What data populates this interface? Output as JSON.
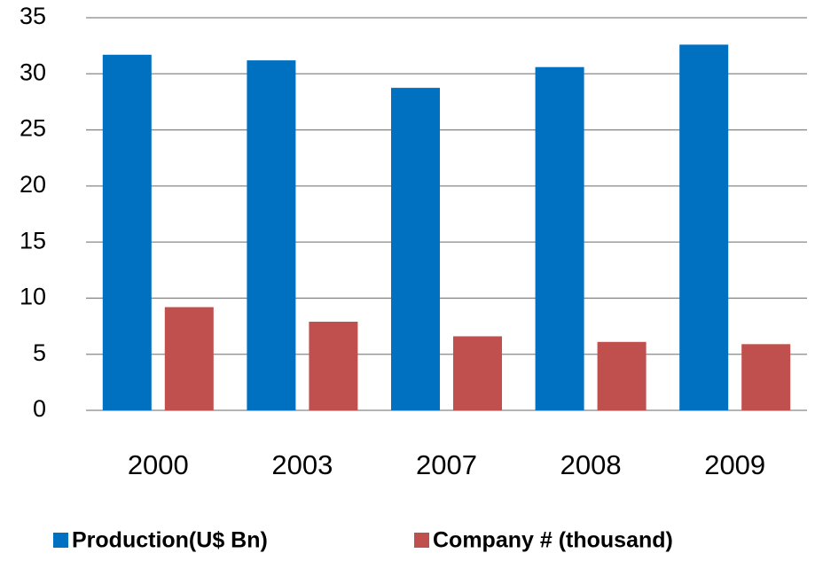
{
  "chart_data": {
    "type": "bar",
    "categories": [
      "2000",
      "2003",
      "2007",
      "2008",
      "2009"
    ],
    "series": [
      {
        "name": "Production(U$ Bn)",
        "color": "#0070c0",
        "values": [
          31.7,
          31.2,
          28.75,
          30.6,
          32.6
        ]
      },
      {
        "name": "Company # (thousand)",
        "color": "#c0504d",
        "values": [
          9.2,
          7.9,
          6.6,
          6.1,
          5.9
        ]
      }
    ],
    "ylim": [
      0,
      35
    ],
    "yticks": [
      0,
      5,
      10,
      15,
      20,
      25,
      30,
      35
    ],
    "grid": true,
    "legend": "bottom"
  }
}
